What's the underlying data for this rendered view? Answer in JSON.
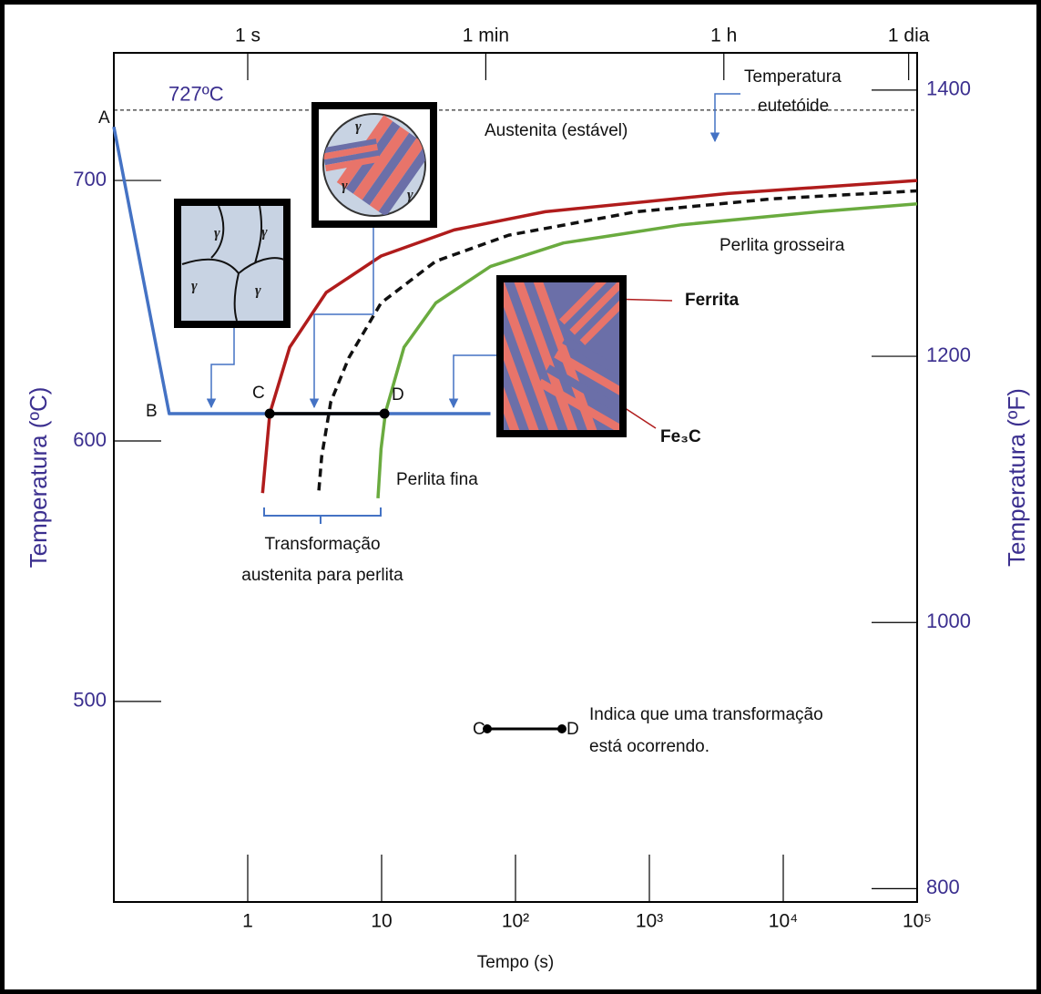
{
  "chart_data": {
    "type": "line",
    "x_scale": "log",
    "xlabel": "Tempo (s)",
    "ylabel": "Temperatura (ºC)",
    "y2label": "Temperatura (ºF)",
    "xlim": [
      0.1,
      100000
    ],
    "xticks": [
      1,
      10,
      {
        "value": 100,
        "label": "10²"
      },
      {
        "value": 1000,
        "label": "10³"
      },
      {
        "value": 10000,
        "label": "10⁴"
      },
      {
        "value": 100000,
        "label": "10⁵"
      }
    ],
    "x2ticks": [
      {
        "value": 1,
        "label": "1 s"
      },
      {
        "value": 60,
        "label": "1 min"
      },
      {
        "value": 3600,
        "label": "1 h"
      },
      {
        "value": 86400,
        "label": "1 dia"
      }
    ],
    "ylim": [
      423,
      749
    ],
    "yticks": [
      500,
      600,
      700
    ],
    "y2lim": [
      790,
      1428
    ],
    "y2ticks": [
      800,
      1000,
      1200,
      1400
    ],
    "eutectoid": {
      "value": 727,
      "label": "727ºC"
    },
    "series": [
      {
        "color": "#b01c1c",
        "style": "solid",
        "x": [
          1.29,
          1.46,
          2.06,
          3.86,
          9.9,
          34.8,
          167,
          3840,
          100000
        ],
        "values": [
          580,
          610.5,
          636,
          657,
          671,
          681,
          688,
          695,
          700
        ]
      },
      {
        "color": "#111111",
        "style": "dashed",
        "x": [
          3.4,
          3.57,
          4.17,
          5.7,
          9.9,
          25.4,
          89,
          800,
          8500,
          100000
        ],
        "values": [
          581,
          594,
          615,
          632,
          653,
          669,
          679,
          688,
          693,
          696
        ]
      },
      {
        "color": "#6aab3f",
        "style": "solid",
        "x": [
          9.4,
          9.9,
          10.7,
          14.7,
          25.4,
          65,
          228,
          1750,
          18400,
          100000
        ],
        "values": [
          578,
          597,
          611,
          636,
          653,
          667,
          676,
          683,
          688,
          691
        ]
      },
      {
        "color": "#4472c4",
        "style": "solid",
        "x": [
          0.1,
          0.259,
          65
        ],
        "values": [
          720.6,
          610.5,
          610.5
        ]
      },
      {
        "color": "#000000",
        "style": "solid",
        "markers": true,
        "x": [
          1.46,
          10.5
        ],
        "values": [
          610.5,
          610.5
        ]
      }
    ],
    "annotations": [
      "A",
      "B",
      "C",
      "D",
      "Austenita (estável)",
      "Temperatura",
      "eutetóide",
      "Perlita grosseira",
      "Perlita fina",
      "Transformação",
      "austenita para perlita",
      "Ferrita",
      "Fe₃C",
      "γ",
      "C",
      "D",
      "Indica que uma transformação",
      "está ocorrendo."
    ]
  }
}
